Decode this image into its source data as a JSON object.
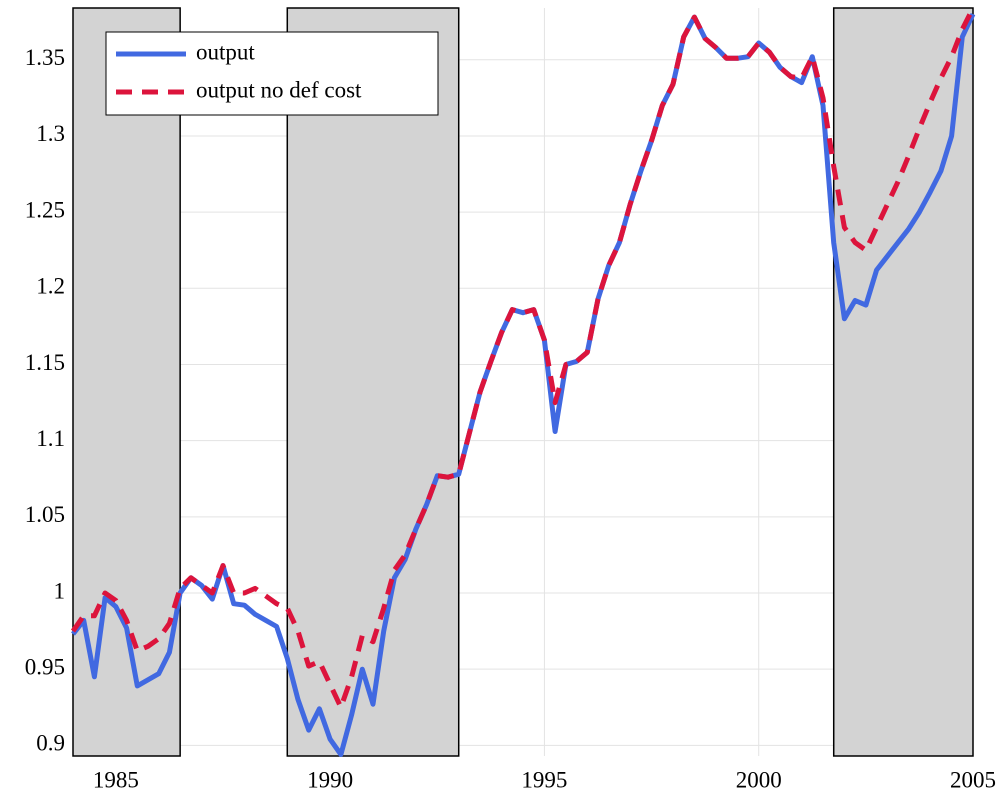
{
  "chart_data": {
    "type": "line",
    "x": [
      1984,
      1984.25,
      1984.5,
      1984.75,
      1985,
      1985.25,
      1985.5,
      1985.75,
      1986,
      1986.25,
      1986.5,
      1986.75,
      1987,
      1987.25,
      1987.5,
      1987.75,
      1988,
      1988.25,
      1988.5,
      1988.75,
      1989,
      1989.25,
      1989.5,
      1989.75,
      1990,
      1990.25,
      1990.5,
      1990.75,
      1991,
      1991.25,
      1991.5,
      1991.75,
      1992,
      1992.25,
      1992.5,
      1992.75,
      1993,
      1993.25,
      1993.5,
      1993.75,
      1994,
      1994.25,
      1994.5,
      1994.75,
      1995,
      1995.25,
      1995.5,
      1995.75,
      1996,
      1996.25,
      1996.5,
      1996.75,
      1997,
      1997.25,
      1997.5,
      1997.75,
      1998,
      1998.25,
      1998.5,
      1998.75,
      1999,
      1999.25,
      1999.5,
      1999.75,
      2000,
      2000.25,
      2000.5,
      2000.75,
      2001,
      2001.25,
      2001.5,
      2001.75,
      2002,
      2002.25,
      2002.5,
      2002.75,
      2003,
      2003.25,
      2003.5,
      2003.75,
      2004,
      2004.25,
      2004.5,
      2004.75,
      2005
    ],
    "series": [
      {
        "name": "output",
        "color": "#4169e1",
        "dash": false,
        "values": [
          0.973,
          0.982,
          0.945,
          0.997,
          0.991,
          0.977,
          0.939,
          0.943,
          0.947,
          0.961,
          1.0,
          1.01,
          1.005,
          0.996,
          1.018,
          0.993,
          0.992,
          0.986,
          0.982,
          0.978,
          0.957,
          0.93,
          0.91,
          0.924,
          0.904,
          0.894,
          0.92,
          0.95,
          0.927,
          0.975,
          1.01,
          1.022,
          1.042,
          1.058,
          1.077,
          1.076,
          1.078,
          1.105,
          1.132,
          1.152,
          1.171,
          1.186,
          1.184,
          1.186,
          1.166,
          1.106,
          1.15,
          1.152,
          1.158,
          1.193,
          1.215,
          1.23,
          1.255,
          1.277,
          1.297,
          1.32,
          1.334,
          1.365,
          1.378,
          1.364,
          1.358,
          1.351,
          1.351,
          1.352,
          1.361,
          1.355,
          1.345,
          1.339,
          1.335,
          1.352,
          1.32,
          1.23,
          1.18,
          1.192,
          1.189,
          1.212,
          1.221,
          1.23,
          1.239,
          1.25,
          1.263,
          1.277,
          1.3,
          1.365,
          1.38
        ]
      },
      {
        "name": "output no def cost",
        "color": "#dc143c",
        "dash": true,
        "values": [
          0.975,
          0.985,
          0.985,
          1.0,
          0.995,
          0.982,
          0.962,
          0.965,
          0.97,
          0.98,
          1.003,
          1.01,
          1.005,
          1.0,
          1.018,
          1.0,
          1.0,
          1.003,
          0.998,
          0.993,
          0.99,
          0.975,
          0.952,
          0.955,
          0.94,
          0.925,
          0.945,
          0.972,
          0.968,
          0.99,
          1.015,
          1.025,
          1.042,
          1.058,
          1.077,
          1.076,
          1.078,
          1.105,
          1.132,
          1.152,
          1.171,
          1.186,
          1.184,
          1.186,
          1.166,
          1.125,
          1.15,
          1.152,
          1.158,
          1.193,
          1.215,
          1.23,
          1.255,
          1.277,
          1.297,
          1.32,
          1.334,
          1.365,
          1.378,
          1.364,
          1.358,
          1.351,
          1.351,
          1.352,
          1.361,
          1.355,
          1.345,
          1.339,
          1.338,
          1.352,
          1.325,
          1.28,
          1.24,
          1.23,
          1.225,
          1.24,
          1.255,
          1.27,
          1.287,
          1.305,
          1.322,
          1.338,
          1.352,
          1.37,
          1.384
        ]
      }
    ],
    "shaded_regions": [
      [
        1984,
        1986.5
      ],
      [
        1989,
        1993
      ],
      [
        2001.75,
        2005
      ]
    ],
    "xlim": [
      1984,
      2005
    ],
    "xticks": [
      1985,
      1990,
      1995,
      2000,
      2005
    ],
    "ylim": [
      0.893,
      1.384
    ],
    "yticks": [
      0.9,
      0.95,
      1,
      1.05,
      1.1,
      1.15,
      1.2,
      1.25,
      1.3,
      1.35
    ],
    "grid": true,
    "legend": "upper left"
  }
}
